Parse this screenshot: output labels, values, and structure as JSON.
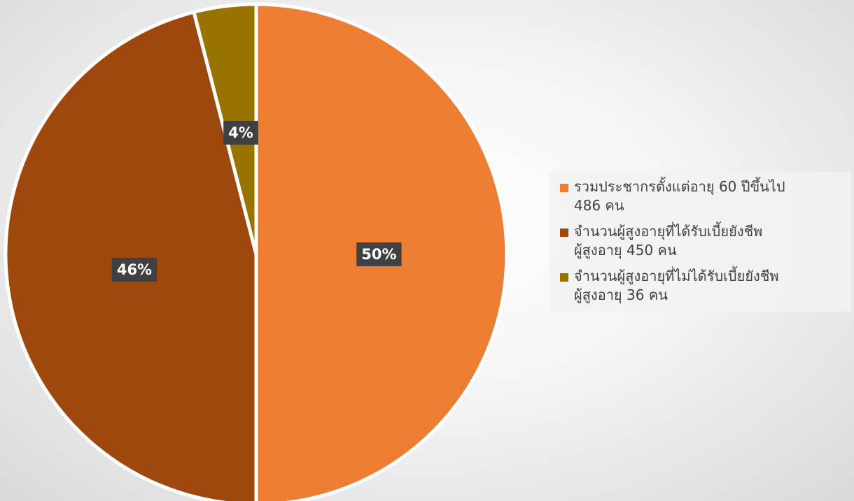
{
  "chart_data": {
    "type": "pie",
    "categories": [
      "รวมประชากรตั้งแต่อายุ 60 ปีขึ้นไป\n486 คน",
      "จำนวนผู้สูงอายุที่ได้รับเบี้ยยังชีพ\nผู้สูงอายุ 450 คน",
      "จำนวนผู้สูงอายุที่ไม่ได้รับเบี้ยยังชีพ\nผู้สูงอายุ 36 คน"
    ],
    "values": [
      50,
      46,
      4
    ],
    "value_labels": [
      "50%",
      "46%",
      "4%"
    ],
    "colors": [
      "#ED7D31",
      "#9E480E",
      "#997300"
    ],
    "legend": "right"
  }
}
